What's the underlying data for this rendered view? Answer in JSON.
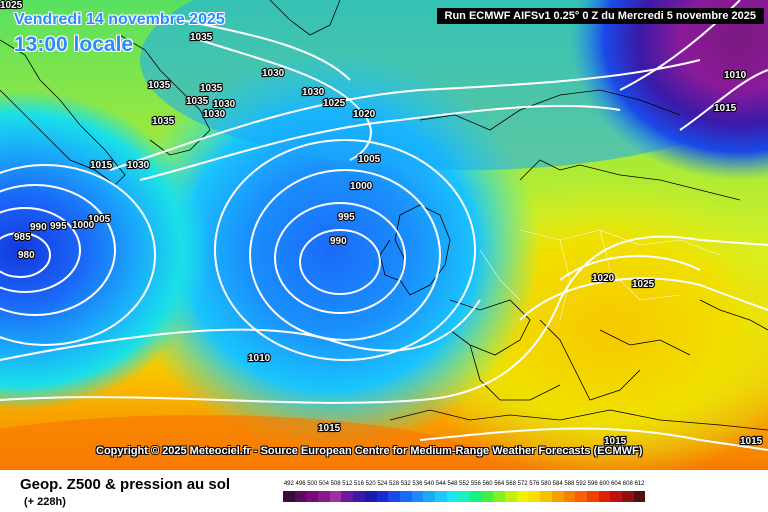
{
  "header": {
    "date_line": "Vendredi 14 novembre 2025",
    "time_line": "13:00 locale",
    "run_info": "Run ECMWF AIFSv1 0.25° 0 Z du Mercredi 5 novembre 2025"
  },
  "copyright": "Copyright © 2025 Meteociel.fr - Source European Centre for Medium-Range Weather Forecasts (ECMWF)",
  "footer": {
    "title": "Geop. Z500 & pression au sol",
    "subtitle": "(+ 228h)"
  },
  "legend": {
    "labels": [
      "492",
      "496",
      "500",
      "504",
      "508",
      "512",
      "516",
      "520",
      "524",
      "528",
      "532",
      "536",
      "540",
      "544",
      "548",
      "552",
      "556",
      "560",
      "564",
      "568",
      "572",
      "576",
      "580",
      "584",
      "588",
      "592",
      "596",
      "600",
      "604",
      "608",
      "612"
    ],
    "colors": [
      "#3a0a3a",
      "#5a0a5a",
      "#7a0a7a",
      "#8a1a8a",
      "#a030a0",
      "#6a1aa0",
      "#3a1aa8",
      "#1a1ab0",
      "#1a2ad0",
      "#1a4ae8",
      "#1a6af8",
      "#1a8afc",
      "#1aaafc",
      "#1acafc",
      "#1ae8f0",
      "#1af0c0",
      "#1af080",
      "#40f040",
      "#80f020",
      "#c0f010",
      "#f0f000",
      "#f8e000",
      "#f8c000",
      "#f8a000",
      "#f88000",
      "#f86000",
      "#f04000",
      "#e02000",
      "#c01010",
      "#901010",
      "#501010"
    ]
  },
  "isobar_labels": [
    {
      "t": "1025"
    },
    {
      "t": "1035"
    },
    {
      "t": "1030"
    },
    {
      "t": "1035"
    },
    {
      "t": "1035"
    },
    {
      "t": "1035"
    },
    {
      "t": "1030"
    },
    {
      "t": "1030"
    },
    {
      "t": "1030"
    },
    {
      "t": "1025"
    },
    {
      "t": "1020"
    },
    {
      "t": "1035"
    },
    {
      "t": "1015"
    },
    {
      "t": "1030"
    },
    {
      "t": "1005"
    },
    {
      "t": "1000"
    },
    {
      "t": "1005"
    },
    {
      "t": "995"
    },
    {
      "t": "990"
    },
    {
      "t": "995"
    },
    {
      "t": "985"
    },
    {
      "t": "990"
    },
    {
      "t": "980"
    },
    {
      "t": "1000"
    },
    {
      "t": "1010"
    },
    {
      "t": "1015"
    },
    {
      "t": "1020"
    },
    {
      "t": "1025"
    },
    {
      "t": "1015"
    },
    {
      "t": "1010"
    },
    {
      "t": "1015"
    },
    {
      "t": "1015"
    }
  ]
}
